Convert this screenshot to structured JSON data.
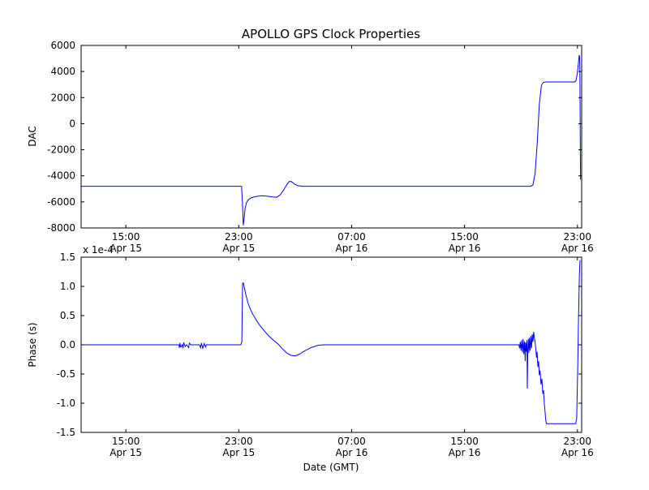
{
  "figure": {
    "background": "#ffffff",
    "axis_color": "#000000",
    "line_color": "#0000ff"
  },
  "chart_data": [
    {
      "type": "line",
      "title": "APOLLO GPS Clock Properties",
      "ylabel": "DAC",
      "x_unit": "hours since Apr 15 00:00 GMT",
      "xlim": [
        11.83,
        47.3
      ],
      "ylim": [
        -8000,
        6000
      ],
      "grid": false,
      "x_ticks": [
        {
          "value": 15,
          "label": "15:00",
          "sublabel": "Apr 15"
        },
        {
          "value": 23,
          "label": "23:00",
          "sublabel": "Apr 15"
        },
        {
          "value": 31,
          "label": "07:00",
          "sublabel": "Apr 16"
        },
        {
          "value": 39,
          "label": "15:00",
          "sublabel": "Apr 16"
        },
        {
          "value": 47,
          "label": "23:00",
          "sublabel": "Apr 16"
        }
      ],
      "y_ticks": [
        {
          "value": 6000,
          "label": "6000"
        },
        {
          "value": 4000,
          "label": "4000"
        },
        {
          "value": 2000,
          "label": "2000"
        },
        {
          "value": 0,
          "label": "0"
        },
        {
          "value": -2000,
          "label": "-2000"
        },
        {
          "value": -4000,
          "label": "-4000"
        },
        {
          "value": -6000,
          "label": "-6000"
        },
        {
          "value": -8000,
          "label": "-8000"
        }
      ],
      "series": [
        {
          "name": "DAC",
          "color": "#0000ff",
          "points": [
            [
              11.83,
              -4800
            ],
            [
              23.1,
              -4800
            ],
            [
              23.2,
              -4820
            ],
            [
              23.28,
              -6500
            ],
            [
              23.32,
              -7800
            ],
            [
              23.38,
              -7300
            ],
            [
              23.45,
              -6500
            ],
            [
              23.55,
              -6050
            ],
            [
              23.7,
              -5820
            ],
            [
              23.9,
              -5680
            ],
            [
              24.2,
              -5590
            ],
            [
              24.6,
              -5530
            ],
            [
              25.0,
              -5560
            ],
            [
              25.4,
              -5620
            ],
            [
              25.7,
              -5640
            ],
            [
              25.95,
              -5450
            ],
            [
              26.2,
              -5050
            ],
            [
              26.45,
              -4600
            ],
            [
              26.6,
              -4420
            ],
            [
              26.75,
              -4450
            ],
            [
              26.95,
              -4640
            ],
            [
              27.2,
              -4760
            ],
            [
              27.5,
              -4800
            ],
            [
              43.7,
              -4800
            ],
            [
              43.85,
              -4700
            ],
            [
              44.0,
              -3800
            ],
            [
              44.15,
              -1500
            ],
            [
              44.3,
              1500
            ],
            [
              44.45,
              2950
            ],
            [
              44.6,
              3180
            ],
            [
              44.8,
              3200
            ],
            [
              46.8,
              3200
            ],
            [
              46.9,
              3300
            ],
            [
              47.0,
              3900
            ],
            [
              47.08,
              4800
            ],
            [
              47.13,
              5250
            ],
            [
              47.16,
              5100
            ],
            [
              47.18,
              3000
            ],
            [
              47.2,
              -1000
            ],
            [
              47.22,
              -4300
            ]
          ]
        }
      ]
    },
    {
      "type": "line",
      "ylabel": "Phase (s)",
      "xlabel": "Date (GMT)",
      "offset_text": "x 1e-4",
      "scale": 0.0001,
      "xlim": [
        11.83,
        47.3
      ],
      "ylim": [
        -1.5,
        1.5
      ],
      "grid": false,
      "x_ticks": [
        {
          "value": 15,
          "label": "15:00",
          "sublabel": "Apr 15"
        },
        {
          "value": 23,
          "label": "23:00",
          "sublabel": "Apr 15"
        },
        {
          "value": 31,
          "label": "07:00",
          "sublabel": "Apr 16"
        },
        {
          "value": 39,
          "label": "15:00",
          "sublabel": "Apr 16"
        },
        {
          "value": 47,
          "label": "23:00",
          "sublabel": "Apr 16"
        }
      ],
      "y_ticks": [
        {
          "value": 1.5,
          "label": "1.5"
        },
        {
          "value": 1.0,
          "label": "1.0"
        },
        {
          "value": 0.5,
          "label": "0.5"
        },
        {
          "value": 0.0,
          "label": "0.0"
        },
        {
          "value": -0.5,
          "label": "-0.5"
        },
        {
          "value": -1.0,
          "label": "-1.0"
        },
        {
          "value": -1.5,
          "label": "-1.5"
        }
      ],
      "series": [
        {
          "name": "Phase",
          "color": "#0000ff",
          "points": [
            [
              11.83,
              0
            ],
            [
              18.75,
              0
            ],
            [
              18.8,
              -0.05
            ],
            [
              18.83,
              0.03
            ],
            [
              18.9,
              -0.04
            ],
            [
              19.0,
              0.0
            ],
            [
              19.05,
              -0.06
            ],
            [
              19.1,
              0.04
            ],
            [
              19.2,
              -0.03
            ],
            [
              19.3,
              0.0
            ],
            [
              19.45,
              -0.05
            ],
            [
              19.5,
              0.03
            ],
            [
              19.6,
              0.0
            ],
            [
              20.2,
              0.0
            ],
            [
              20.3,
              -0.05
            ],
            [
              20.35,
              0.03
            ],
            [
              20.45,
              -0.06
            ],
            [
              20.55,
              0.02
            ],
            [
              20.65,
              -0.04
            ],
            [
              20.7,
              0.0
            ],
            [
              23.15,
              0
            ],
            [
              23.22,
              0.05
            ],
            [
              23.27,
              1.05
            ],
            [
              23.33,
              1.06
            ],
            [
              23.4,
              0.97
            ],
            [
              23.5,
              0.86
            ],
            [
              23.65,
              0.72
            ],
            [
              23.8,
              0.62
            ],
            [
              24.0,
              0.52
            ],
            [
              24.25,
              0.42
            ],
            [
              24.5,
              0.33
            ],
            [
              24.8,
              0.24
            ],
            [
              25.1,
              0.16
            ],
            [
              25.45,
              0.08
            ],
            [
              25.8,
              0.01
            ],
            [
              26.1,
              -0.07
            ],
            [
              26.4,
              -0.14
            ],
            [
              26.7,
              -0.18
            ],
            [
              27.0,
              -0.19
            ],
            [
              27.3,
              -0.16
            ],
            [
              27.7,
              -0.1
            ],
            [
              28.1,
              -0.05
            ],
            [
              28.6,
              -0.01
            ],
            [
              29.0,
              0.0
            ],
            [
              42.85,
              0.0
            ],
            [
              42.9,
              -0.06
            ],
            [
              42.95,
              0.05
            ],
            [
              43.0,
              -0.1
            ],
            [
              43.05,
              0.08
            ],
            [
              43.1,
              -0.13
            ],
            [
              43.15,
              0.1
            ],
            [
              43.2,
              -0.16
            ],
            [
              43.25,
              0.06
            ],
            [
              43.3,
              -0.28
            ],
            [
              43.33,
              0.04
            ],
            [
              43.38,
              -0.12
            ],
            [
              43.42,
              0.08
            ],
            [
              43.45,
              -0.75
            ],
            [
              43.48,
              -0.1
            ],
            [
              43.52,
              0.1
            ],
            [
              43.56,
              -0.14
            ],
            [
              43.6,
              0.12
            ],
            [
              43.65,
              -0.1
            ],
            [
              43.7,
              0.15
            ],
            [
              43.75,
              -0.06
            ],
            [
              43.8,
              0.18
            ],
            [
              43.85,
              0.05
            ],
            [
              43.9,
              0.22
            ],
            [
              43.95,
              0.12
            ],
            [
              44.0,
              0.05
            ],
            [
              44.05,
              -0.08
            ],
            [
              44.1,
              -0.22
            ],
            [
              44.14,
              -0.12
            ],
            [
              44.2,
              -0.38
            ],
            [
              44.25,
              -0.28
            ],
            [
              44.3,
              -0.52
            ],
            [
              44.35,
              -0.44
            ],
            [
              44.42,
              -0.68
            ],
            [
              44.48,
              -0.58
            ],
            [
              44.55,
              -0.84
            ],
            [
              44.6,
              -0.78
            ],
            [
              44.65,
              -1.0
            ],
            [
              44.7,
              -1.12
            ],
            [
              44.75,
              -1.28
            ],
            [
              44.8,
              -1.35
            ],
            [
              46.88,
              -1.35
            ],
            [
              46.95,
              -1.25
            ],
            [
              47.02,
              -0.4
            ],
            [
              47.08,
              0.5
            ],
            [
              47.14,
              1.2
            ],
            [
              47.18,
              1.45
            ]
          ]
        }
      ]
    }
  ]
}
